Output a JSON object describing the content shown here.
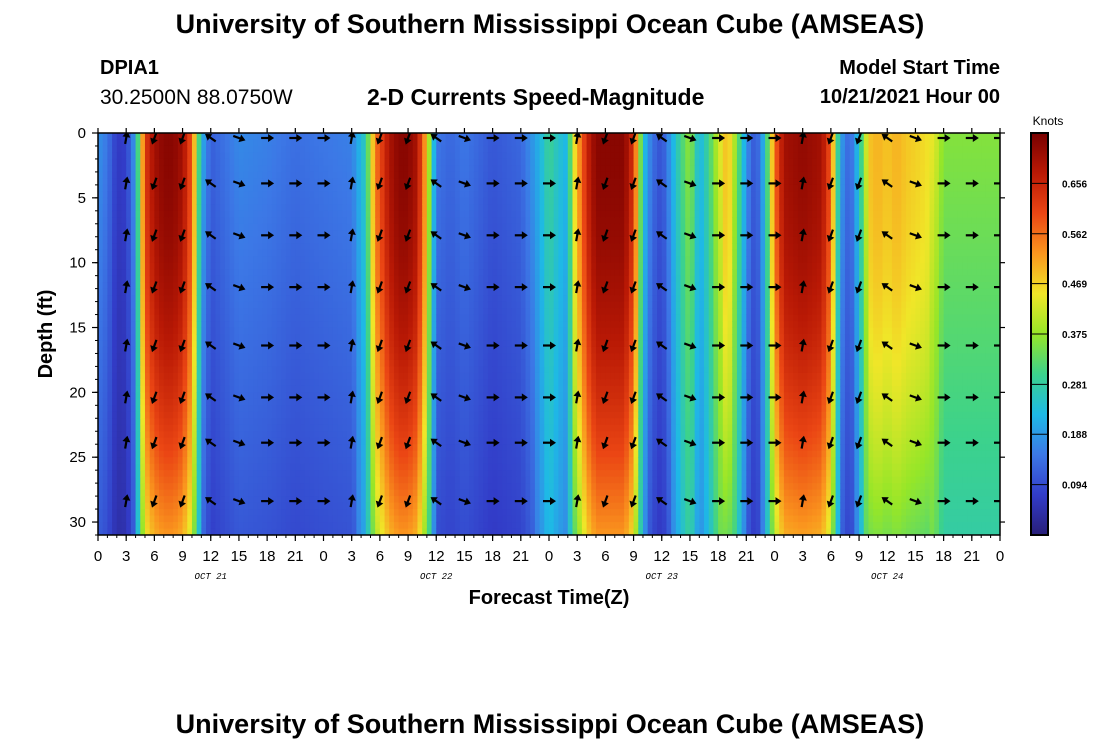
{
  "header": {
    "title": "University of Southern Mississippi Ocean Cube (AMSEAS)",
    "station": "DPIA1",
    "coords": "30.2500N  88.0750W",
    "subtitle": "2-D Currents Speed-Magnitude",
    "start_label": "Model Start Time",
    "start_value": "10/21/2021 Hour 00"
  },
  "footer": {
    "title": "University of Southern Mississippi Ocean Cube (AMSEAS)"
  },
  "chart_data": {
    "type": "heatmap",
    "title": "2-D Currents Speed-Magnitude",
    "xlabel": "Forecast Time(Z)",
    "ylabel": "Depth (ft)",
    "x_unit": "hours since model start (10/21/2021 00Z)",
    "xlim": [
      0,
      96
    ],
    "ylim": [
      0,
      31
    ],
    "x_ticks": [
      0,
      3,
      6,
      9,
      12,
      15,
      18,
      21,
      24,
      27,
      30,
      33,
      36,
      39,
      42,
      45,
      48,
      51,
      54,
      57,
      60,
      63,
      66,
      69,
      72,
      75,
      78,
      81,
      84,
      87,
      90,
      93,
      96
    ],
    "x_tick_labels": [
      "0",
      "3",
      "6",
      "9",
      "12",
      "15",
      "18",
      "21",
      "0",
      "3",
      "6",
      "9",
      "12",
      "15",
      "18",
      "21",
      "0",
      "3",
      "6",
      "9",
      "12",
      "15",
      "18",
      "21",
      "0",
      "3",
      "6",
      "9",
      "12",
      "15",
      "18",
      "21",
      "0"
    ],
    "y_ticks": [
      0,
      5,
      10,
      15,
      20,
      25,
      30
    ],
    "day_labels": [
      {
        "hour": 12,
        "label": "OCT 21"
      },
      {
        "hour": 36,
        "label": "OCT 22"
      },
      {
        "hour": 60,
        "label": "OCT 23"
      },
      {
        "hour": 84,
        "label": "OCT 24"
      }
    ],
    "colorbar": {
      "label": "Knots",
      "min": 0.0,
      "max": 0.75,
      "ticks": [
        0.094,
        0.188,
        0.281,
        0.375,
        0.469,
        0.562,
        0.656
      ]
    },
    "arrow_hours": [
      3,
      6,
      9,
      12,
      15,
      18,
      21,
      24,
      27,
      30,
      33,
      36,
      39,
      42,
      45,
      48,
      51,
      54,
      57,
      60,
      63,
      66,
      69,
      72,
      75,
      78,
      81,
      84,
      87,
      90,
      93,
      96
    ],
    "arrow_depths": [
      0,
      3.5,
      7.5,
      11.5,
      16,
      20,
      23.5,
      28
    ],
    "speed_profile": [
      [
        0,
        0.18
      ],
      [
        1,
        0.15
      ],
      [
        2,
        0.07
      ],
      [
        3,
        0.08
      ],
      [
        4,
        0.2
      ],
      [
        4.5,
        0.42
      ],
      [
        5,
        0.62
      ],
      [
        6,
        0.7
      ],
      [
        7,
        0.73
      ],
      [
        8,
        0.73
      ],
      [
        9,
        0.7
      ],
      [
        10,
        0.58
      ],
      [
        10.5,
        0.4
      ],
      [
        11,
        0.22
      ],
      [
        12,
        0.12
      ],
      [
        15,
        0.17
      ],
      [
        18,
        0.16
      ],
      [
        21,
        0.14
      ],
      [
        24,
        0.15
      ],
      [
        27,
        0.16
      ],
      [
        28.5,
        0.27
      ],
      [
        29.5,
        0.55
      ],
      [
        31,
        0.69
      ],
      [
        32,
        0.73
      ],
      [
        33,
        0.73
      ],
      [
        34,
        0.69
      ],
      [
        35,
        0.48
      ],
      [
        35.5,
        0.3
      ],
      [
        36,
        0.15
      ],
      [
        37.5,
        0.13
      ],
      [
        39,
        0.15
      ],
      [
        42,
        0.11
      ],
      [
        45,
        0.13
      ],
      [
        47,
        0.22
      ],
      [
        48,
        0.3
      ],
      [
        49,
        0.25
      ],
      [
        50,
        0.22
      ],
      [
        50.5,
        0.42
      ],
      [
        52,
        0.65
      ],
      [
        53,
        0.73
      ],
      [
        56,
        0.73
      ],
      [
        57,
        0.63
      ],
      [
        57.5,
        0.45
      ],
      [
        58,
        0.25
      ],
      [
        59,
        0.14
      ],
      [
        60,
        0.1
      ],
      [
        61,
        0.2
      ],
      [
        62,
        0.3
      ],
      [
        63,
        0.38
      ],
      [
        63.5,
        0.3
      ],
      [
        64,
        0.22
      ],
      [
        65,
        0.3
      ],
      [
        66,
        0.42
      ],
      [
        67,
        0.5
      ],
      [
        68,
        0.36
      ],
      [
        69,
        0.18
      ],
      [
        70,
        0.1
      ],
      [
        71,
        0.24
      ],
      [
        72,
        0.56
      ],
      [
        73,
        0.7
      ],
      [
        75,
        0.72
      ],
      [
        77,
        0.7
      ],
      [
        78,
        0.58
      ],
      [
        78.5,
        0.38
      ],
      [
        79,
        0.2
      ],
      [
        80,
        0.12
      ],
      [
        81,
        0.25
      ],
      [
        82,
        0.48
      ],
      [
        83,
        0.5
      ],
      [
        84,
        0.48
      ],
      [
        85,
        0.5
      ],
      [
        86,
        0.48
      ],
      [
        88,
        0.46
      ],
      [
        89,
        0.44
      ],
      [
        90,
        0.36
      ],
      [
        96,
        0.36
      ]
    ]
  }
}
